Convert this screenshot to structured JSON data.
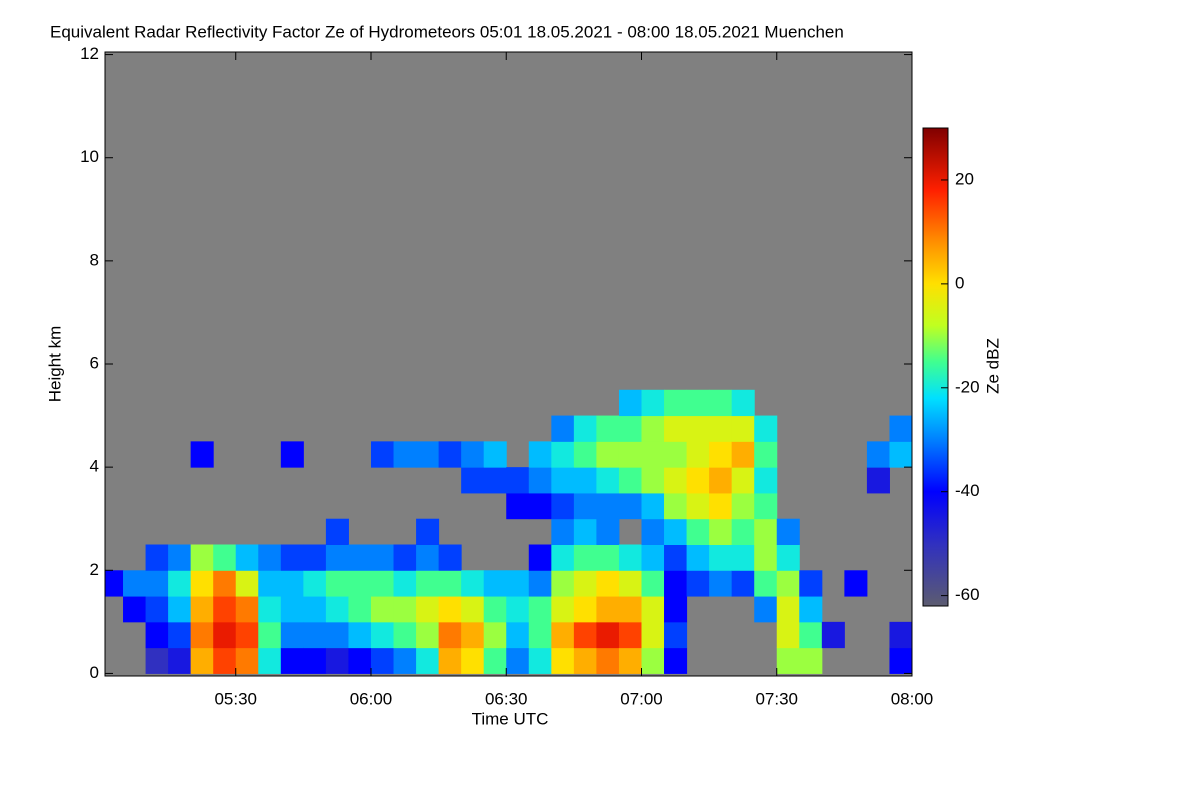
{
  "chart_data": {
    "type": "heatmap",
    "title": "Equivalent Radar Reflectivity Factor Ze of Hydrometeors   05:01 18.05.2021 - 08:00 18.05.2021 Muenchen",
    "x_label": "Time UTC",
    "y_label": "Height km",
    "colorbar_label": "Ze dBZ",
    "xlim": [
      5.0167,
      8.0
    ],
    "ylim": [
      -0.05,
      12.05
    ],
    "clim": [
      -62,
      30
    ],
    "xticks": [
      {
        "value": 5.5,
        "label": "05:30"
      },
      {
        "value": 6,
        "label": "06:00"
      },
      {
        "value": 6.5,
        "label": "06:30"
      },
      {
        "value": 7,
        "label": "07:00"
      },
      {
        "value": 7.5,
        "label": "07:30"
      },
      {
        "value": 8,
        "label": "08:00"
      }
    ],
    "yticks": [
      0,
      2,
      4,
      6,
      8,
      10,
      12
    ],
    "cticks": [
      -60,
      -40,
      -20,
      0,
      20
    ],
    "background": "#808080",
    "colorscale": [
      [
        -62,
        "#5c5c70"
      ],
      [
        -50,
        "#3030c0"
      ],
      [
        -40,
        "#0000ff"
      ],
      [
        -30,
        "#0080ff"
      ],
      [
        -22,
        "#00e0ff"
      ],
      [
        -15,
        "#40ff90"
      ],
      [
        -8,
        "#c0ff20"
      ],
      [
        0,
        "#ffe000"
      ],
      [
        8,
        "#ff9000"
      ],
      [
        18,
        "#ff2000"
      ],
      [
        30,
        "#800000"
      ]
    ],
    "xbins": [
      5,
      5.0833,
      5.1667,
      5.25,
      5.3333,
      5.4167,
      5.5,
      5.5833,
      5.6667,
      5.75,
      5.8333,
      5.9167,
      6,
      6.0833,
      6.1667,
      6.25,
      6.3333,
      6.4167,
      6.5,
      6.5833,
      6.6667,
      6.75,
      6.8333,
      6.9167,
      7,
      7.0833,
      7.1667,
      7.25,
      7.3333,
      7.4167,
      7.5,
      7.5833,
      7.6667,
      7.75,
      7.8333,
      7.9167,
      8
    ],
    "ybins": [
      0,
      0.5,
      1,
      1.5,
      2,
      2.5,
      3,
      3.5,
      4,
      4.5,
      5,
      5.5
    ],
    "values": [
      [
        null,
        null,
        null,
        -40,
        null,
        null,
        null,
        null,
        null,
        null,
        null
      ],
      [
        null,
        null,
        -40,
        -30,
        null,
        null,
        null,
        null,
        null,
        null,
        null
      ],
      [
        -50,
        -40,
        -35,
        -30,
        -35,
        null,
        null,
        null,
        null,
        null,
        null
      ],
      [
        -45,
        -35,
        -25,
        -20,
        -30,
        null,
        null,
        null,
        null,
        null,
        null
      ],
      [
        5,
        10,
        5,
        0,
        -10,
        null,
        null,
        null,
        -40,
        null,
        null
      ],
      [
        15,
        20,
        15,
        10,
        -15,
        null,
        null,
        null,
        null,
        null,
        null
      ],
      [
        10,
        15,
        10,
        -5,
        -25,
        null,
        null,
        null,
        null,
        null,
        null
      ],
      [
        -20,
        -15,
        -20,
        -25,
        -30,
        null,
        null,
        null,
        null,
        null,
        null
      ],
      [
        -40,
        -30,
        -25,
        -25,
        -35,
        null,
        null,
        null,
        -40,
        null,
        null
      ],
      [
        -40,
        -30,
        -25,
        -20,
        -35,
        null,
        null,
        null,
        null,
        null,
        null
      ],
      [
        -45,
        -30,
        -20,
        -15,
        -30,
        -35,
        null,
        null,
        null,
        null,
        null
      ],
      [
        -40,
        -25,
        -15,
        -15,
        -30,
        null,
        null,
        null,
        null,
        null,
        null
      ],
      [
        -35,
        -20,
        -10,
        -15,
        -30,
        null,
        null,
        null,
        -35,
        null,
        null
      ],
      [
        -30,
        -15,
        -10,
        -20,
        -35,
        null,
        null,
        null,
        -30,
        null,
        null
      ],
      [
        -20,
        -10,
        -5,
        -15,
        -30,
        -35,
        null,
        null,
        -30,
        null,
        null
      ],
      [
        5,
        10,
        0,
        -15,
        -35,
        null,
        null,
        null,
        -35,
        null,
        null
      ],
      [
        0,
        5,
        -5,
        -20,
        null,
        null,
        null,
        -35,
        -30,
        null,
        null
      ],
      [
        -15,
        -10,
        -15,
        -25,
        null,
        null,
        null,
        -35,
        -25,
        null,
        null
      ],
      [
        -30,
        -25,
        -20,
        -25,
        null,
        null,
        -40,
        -35,
        null,
        null,
        null
      ],
      [
        -20,
        -15,
        -15,
        -30,
        -40,
        null,
        -40,
        -30,
        -25,
        null,
        null
      ],
      [
        0,
        5,
        -5,
        -10,
        -20,
        -30,
        -35,
        -25,
        -20,
        -30,
        null
      ],
      [
        5,
        15,
        0,
        -5,
        -15,
        -25,
        -30,
        -25,
        -15,
        -20,
        null
      ],
      [
        10,
        20,
        5,
        0,
        -15,
        -30,
        -30,
        -20,
        -10,
        -15,
        null
      ],
      [
        5,
        15,
        5,
        -5,
        -20,
        null,
        -30,
        -15,
        -10,
        -15,
        -25
      ],
      [
        -10,
        -5,
        -5,
        -15,
        -25,
        -30,
        -25,
        -10,
        -10,
        -10,
        -20
      ],
      [
        -40,
        -35,
        -40,
        -40,
        -35,
        -25,
        -10,
        -5,
        -10,
        -5,
        -15
      ],
      [
        null,
        null,
        null,
        -35,
        -25,
        -15,
        -5,
        0,
        -5,
        -5,
        -15
      ],
      [
        null,
        null,
        null,
        -30,
        -20,
        -10,
        0,
        5,
        0,
        -5,
        -15
      ],
      [
        null,
        null,
        null,
        -35,
        -20,
        -15,
        -10,
        -5,
        5,
        -5,
        -20
      ],
      [
        null,
        null,
        -30,
        -15,
        -10,
        -10,
        -15,
        -20,
        -15,
        -20,
        null
      ],
      [
        -10,
        -5,
        -5,
        -10,
        -20,
        -30,
        null,
        null,
        null,
        null,
        null
      ],
      [
        -10,
        -15,
        -25,
        -35,
        null,
        null,
        null,
        null,
        null,
        null,
        null
      ],
      [
        null,
        -45,
        null,
        null,
        null,
        null,
        null,
        null,
        null,
        null,
        null
      ],
      [
        null,
        null,
        null,
        -40,
        null,
        null,
        null,
        null,
        null,
        null,
        null
      ],
      [
        null,
        null,
        null,
        null,
        null,
        null,
        null,
        -45,
        -30,
        null,
        null
      ],
      [
        -40,
        -45,
        null,
        null,
        null,
        null,
        null,
        null,
        -25,
        -30,
        null
      ]
    ]
  }
}
